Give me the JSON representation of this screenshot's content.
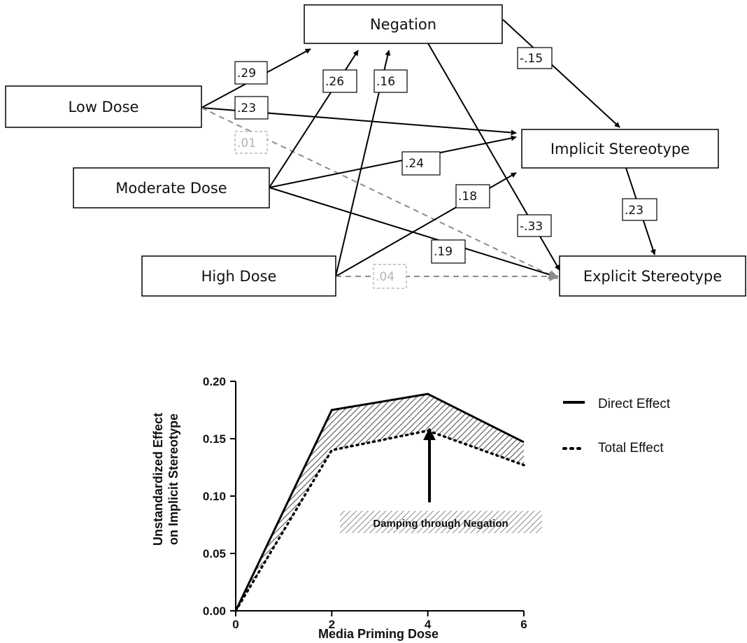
{
  "diagram": {
    "nodes": {
      "negation": "Negation",
      "low_dose": "Low Dose",
      "moderate_dose": "Moderate Dose",
      "high_dose": "High Dose",
      "implicit": "Implicit Stereotype",
      "explicit": "Explicit Stereotype"
    },
    "paths": [
      {
        "from": "Low Dose",
        "to": "Negation",
        "coef": ".29",
        "significant": true
      },
      {
        "from": "Low Dose",
        "to": "Implicit Stereotype",
        "coef": ".23",
        "significant": true
      },
      {
        "from": "Low Dose",
        "to": "Explicit Stereotype",
        "coef": ".01",
        "significant": false
      },
      {
        "from": "Moderate Dose",
        "to": "Negation",
        "coef": ".26",
        "significant": true
      },
      {
        "from": "Moderate Dose",
        "to": "Implicit Stereotype",
        "coef": ".24",
        "significant": true
      },
      {
        "from": "Moderate Dose",
        "to": "Explicit Stereotype",
        "coef": ".19",
        "significant": true
      },
      {
        "from": "High Dose",
        "to": "Negation",
        "coef": ".16",
        "significant": true
      },
      {
        "from": "High Dose",
        "to": "Implicit Stereotype",
        "coef": ".18",
        "significant": true
      },
      {
        "from": "High Dose",
        "to": "Explicit Stereotype",
        "coef": ".04",
        "significant": false
      },
      {
        "from": "Negation",
        "to": "Implicit Stereotype",
        "coef": "-.15",
        "significant": true
      },
      {
        "from": "Negation",
        "to": "Explicit Stereotype",
        "coef": "-.33",
        "significant": true
      },
      {
        "from": "Implicit Stereotype",
        "to": "Explicit Stereotype",
        "coef": ".23",
        "significant": true
      }
    ],
    "colors": {
      "significant": "#000000",
      "non_significant": "#8c8c8c",
      "non_significant_label": "#b5b5b5"
    }
  },
  "chart_data": {
    "type": "line",
    "x": [
      0,
      2,
      4,
      6
    ],
    "series": [
      {
        "name": "Direct Effect",
        "style": "solid",
        "values": [
          0,
          0.175,
          0.189,
          0.147
        ]
      },
      {
        "name": "Total Effect",
        "style": "dotted",
        "values": [
          0,
          0.14,
          0.157,
          0.127
        ]
      }
    ],
    "xlabel": "Media Priming Dose",
    "ylabel_line1": "Unstandardized Effect",
    "ylabel_line2": "on Implicit Stereotype",
    "xlim": [
      0,
      6
    ],
    "ylim": [
      0,
      0.2
    ],
    "xticks": [
      "0",
      "2",
      "4",
      "6"
    ],
    "yticks": [
      "0.00",
      "0.05",
      "0.10",
      "0.15",
      "0.20"
    ],
    "grid": false,
    "legend_position": "right",
    "annotation": "Damping through Negation",
    "shaded_region": "between series (hatched)"
  }
}
